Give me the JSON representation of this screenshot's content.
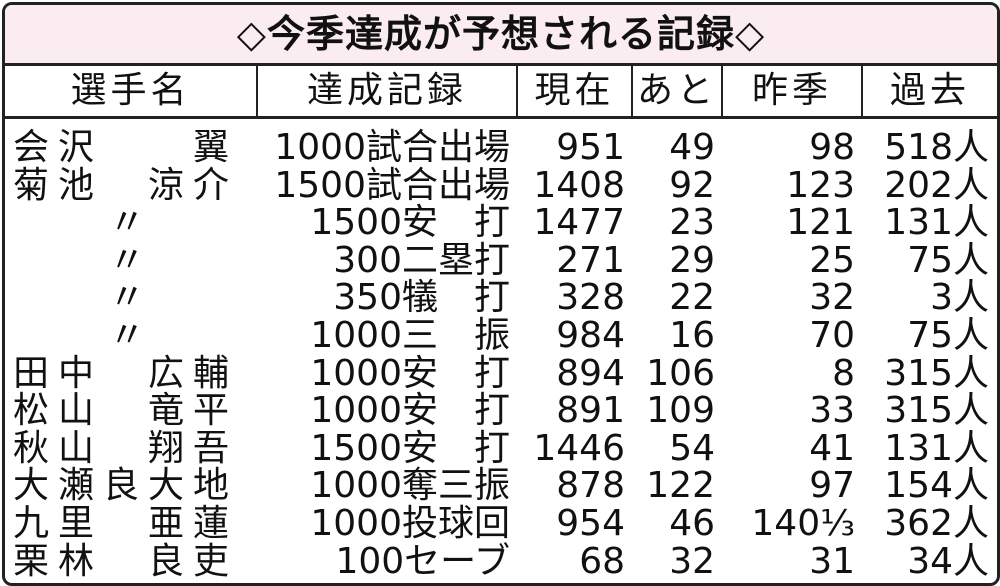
{
  "title": "◇今季達成が予想される記録◇",
  "table": {
    "header": [
      "選手名",
      "達成記録",
      "現在",
      "あと",
      "昨季",
      "過去"
    ],
    "rows": [
      [
        "会沢　　翼",
        "1000試合出場",
        "951",
        "49",
        "98",
        "518人"
      ],
      [
        "菊池　涼介",
        "1500試合出場",
        "1408",
        "92",
        "123",
        "202人"
      ],
      [
        "〃",
        "1500安　打",
        "1477",
        "23",
        "121",
        "131人"
      ],
      [
        "〃",
        "300二塁打",
        "271",
        "29",
        "25",
        "75人"
      ],
      [
        "〃",
        "350犠　打",
        "328",
        "22",
        "32",
        "3人"
      ],
      [
        "〃",
        "1000三　振",
        "984",
        "16",
        "70",
        "75人"
      ],
      [
        "田中　広輔",
        "1000安　打",
        "894",
        "106",
        "8",
        "315人"
      ],
      [
        "松山　竜平",
        "1000安　打",
        "891",
        "109",
        "33",
        "315人"
      ],
      [
        "秋山　翔吾",
        "1500安　打",
        "1446",
        "54",
        "41",
        "131人"
      ],
      [
        "大瀬良大地",
        "1000奪三振",
        "878",
        "122",
        "97",
        "154人"
      ],
      [
        "九里　亜蓮",
        "1000投球回",
        "954",
        "46",
        "140⅓",
        "362人"
      ],
      [
        "栗林　良吏",
        "100セーブ",
        "68",
        "32",
        "31",
        "34人"
      ]
    ]
  }
}
